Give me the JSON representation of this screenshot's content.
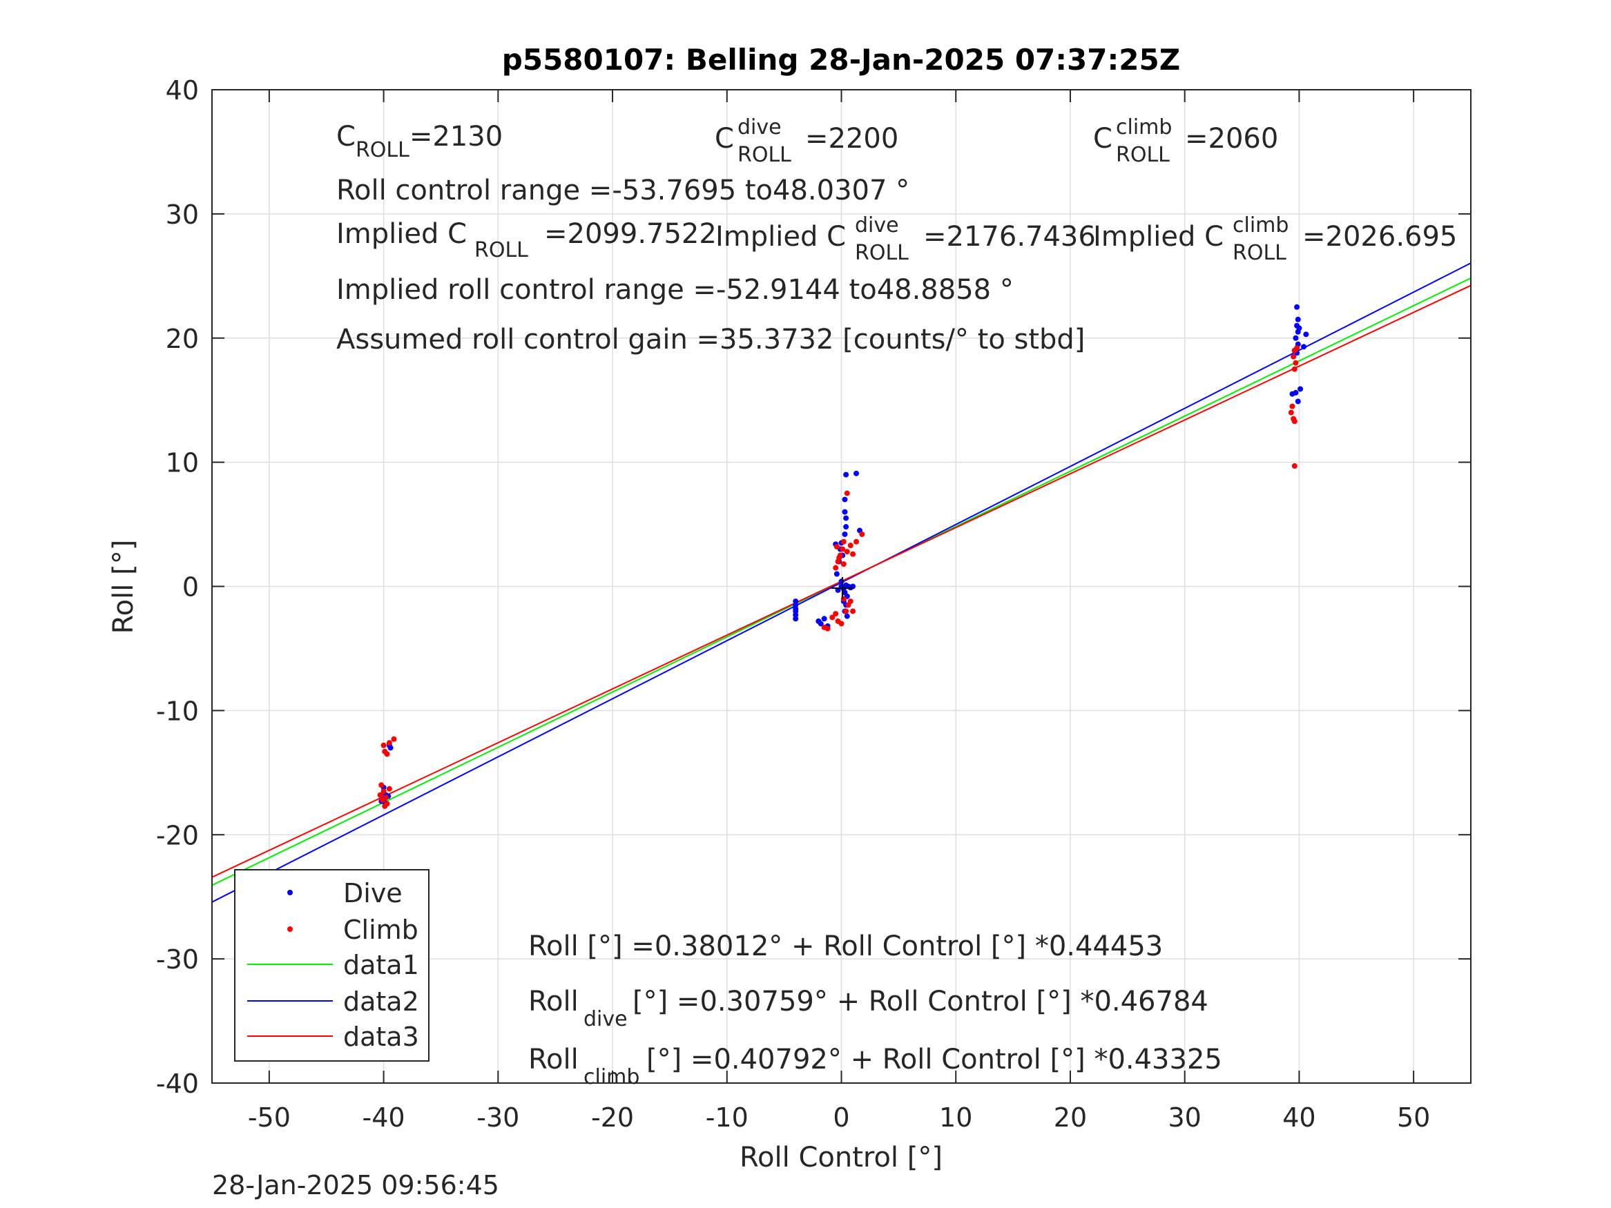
{
  "chart_data": {
    "type": "scatter",
    "title": "p5580107: Belling 28-Jan-2025 07:37:25Z",
    "xlabel": "Roll Control [°]",
    "ylabel": "Roll [°]",
    "xlim": [
      -55,
      55
    ],
    "ylim": [
      -40,
      40
    ],
    "xticks": [
      -50,
      -40,
      -30,
      -20,
      -10,
      0,
      10,
      20,
      30,
      40,
      50
    ],
    "yticks": [
      -40,
      -30,
      -20,
      -10,
      0,
      10,
      20,
      30,
      40
    ],
    "grid": true,
    "legend_position": "bottom-left",
    "timestamp": "28-Jan-2025 09:56:45",
    "colors": {
      "dive": "#0000ff",
      "climb": "#ff0000",
      "data1": "#00ee00",
      "data2": "#0000ff",
      "data3": "#ff0000",
      "axis": "#262626",
      "grid": "#dedede"
    },
    "series": [
      {
        "name": "Dive",
        "kind": "points",
        "color": "#0000ff",
        "points": [
          [
            -40,
            -16.2
          ],
          [
            -40,
            -16.6
          ],
          [
            -39.8,
            -16.8
          ],
          [
            -39.6,
            -16.9
          ],
          [
            -40,
            -17.1
          ],
          [
            -40.2,
            -17.3
          ],
          [
            -39.9,
            -17.4
          ],
          [
            -39.5,
            -12.8
          ],
          [
            -39.4,
            -13.0
          ],
          [
            -4,
            -1.2
          ],
          [
            -4,
            -1.5
          ],
          [
            -4,
            -1.8
          ],
          [
            -4,
            -2.0
          ],
          [
            -4,
            -2.3
          ],
          [
            -4,
            -2.6
          ],
          [
            -2.0,
            -2.8
          ],
          [
            -1.5,
            -2.6
          ],
          [
            -1.8,
            -3.0
          ],
          [
            -1.2,
            -3.2
          ],
          [
            0,
            0
          ],
          [
            0.2,
            -0.2
          ],
          [
            0.4,
            0.1
          ],
          [
            0.6,
            0.0
          ],
          [
            0.8,
            -0.1
          ],
          [
            1.0,
            0.0
          ],
          [
            0.3,
            -0.5
          ],
          [
            0.5,
            -0.8
          ],
          [
            0.2,
            -1.2
          ],
          [
            0.4,
            -1.5
          ],
          [
            0.3,
            -2.0
          ],
          [
            0.5,
            -2.4
          ],
          [
            -0.4,
            1.0
          ],
          [
            -0.2,
            2.0
          ],
          [
            -0.1,
            3.0
          ],
          [
            0,
            3.5
          ],
          [
            0.3,
            4.2
          ],
          [
            0.4,
            4.8
          ],
          [
            0.4,
            5.5
          ],
          [
            0.3,
            6.0
          ],
          [
            0.3,
            7.0
          ],
          [
            0.4,
            9.0
          ],
          [
            1.3,
            9.1
          ],
          [
            1.6,
            4.5
          ],
          [
            -0.5,
            3.4
          ],
          [
            0.1,
            2.5
          ],
          [
            0,
            0.4
          ],
          [
            -0.3,
            -0.3
          ],
          [
            39.8,
            22.5
          ],
          [
            39.9,
            21.5
          ],
          [
            39.8,
            21.0
          ],
          [
            39.9,
            20.5
          ],
          [
            39.7,
            20.0
          ],
          [
            39.9,
            19.5
          ],
          [
            39.6,
            19.0
          ],
          [
            40.6,
            20.3
          ],
          [
            40.4,
            19.3
          ],
          [
            39.4,
            15.5
          ],
          [
            39.7,
            15.6
          ],
          [
            40.1,
            15.9
          ],
          [
            39.9,
            14.9
          ],
          [
            40.0,
            20.8
          ],
          [
            39.8,
            18.8
          ]
        ]
      },
      {
        "name": "Climb",
        "kind": "points",
        "color": "#ff0000",
        "points": [
          [
            -40,
            -16.5
          ],
          [
            -40.3,
            -16.8
          ],
          [
            -39.8,
            -17.0
          ],
          [
            -40.1,
            -17.2
          ],
          [
            -39.7,
            -17.5
          ],
          [
            -40.2,
            -16.0
          ],
          [
            -39.5,
            -16.3
          ],
          [
            -39.9,
            -17.7
          ],
          [
            -40,
            -12.8
          ],
          [
            -39.7,
            -13.5
          ],
          [
            -39.5,
            -12.6
          ],
          [
            -39.1,
            -12.3
          ],
          [
            -39.9,
            -13.3
          ],
          [
            -1.5,
            -3.3
          ],
          [
            -1.2,
            -3.4
          ],
          [
            -0.8,
            -2.5
          ],
          [
            -0.5,
            -2.2
          ],
          [
            -0.3,
            -2.8
          ],
          [
            0,
            -3.0
          ],
          [
            0.4,
            -2.0
          ],
          [
            0.6,
            -1.5
          ],
          [
            0.2,
            -1.0
          ],
          [
            0.8,
            -1.2
          ],
          [
            1.0,
            -2.0
          ],
          [
            -0.5,
            1.5
          ],
          [
            -0.3,
            2.0
          ],
          [
            -0.1,
            2.5
          ],
          [
            0.1,
            3.0
          ],
          [
            -0.4,
            3.2
          ],
          [
            0.2,
            3.6
          ],
          [
            0.5,
            2.8
          ],
          [
            0.8,
            3.3
          ],
          [
            1.0,
            2.6
          ],
          [
            1.3,
            3.6
          ],
          [
            1.8,
            4.2
          ],
          [
            0.5,
            7.5
          ],
          [
            0.2,
            1.8
          ],
          [
            -0.2,
            2.3
          ],
          [
            39.5,
            18.5
          ],
          [
            39.7,
            18.0
          ],
          [
            39.6,
            17.5
          ],
          [
            39.8,
            19.2
          ],
          [
            39.6,
            19.0
          ],
          [
            39.4,
            14.5
          ],
          [
            39.3,
            14.0
          ],
          [
            39.5,
            13.5
          ],
          [
            39.6,
            13.3
          ],
          [
            39.6,
            9.7
          ]
        ]
      },
      {
        "name": "data1",
        "kind": "line",
        "color": "#00ee00",
        "intercept": 0.38012,
        "slope": 0.44453
      },
      {
        "name": "data2",
        "kind": "line",
        "color": "#0000ff",
        "intercept": 0.30759,
        "slope": 0.46784
      },
      {
        "name": "data3",
        "kind": "line",
        "color": "#ff0000",
        "intercept": 0.40792,
        "slope": 0.43325
      }
    ],
    "annotations": {
      "c_roll": {
        "base": "C",
        "sub": "ROLL",
        "value": "=2130"
      },
      "c_roll_dive": {
        "base": "C",
        "sup": "dive",
        "sub": "ROLL",
        "value": "=2200"
      },
      "c_roll_climb": {
        "base": "C",
        "sup": "climb",
        "sub": "ROLL",
        "value": "=2060"
      },
      "roll_control_range": "Roll control range =-53.7695 to48.0307 °",
      "implied_c_roll": {
        "prefix": "Implied C",
        "sub": "ROLL",
        "value": "=2099.7522"
      },
      "implied_c_roll_dive": {
        "prefix": "Implied C",
        "sup": "dive",
        "sub": "ROLL",
        "value": "=2176.7436"
      },
      "implied_c_roll_climb": {
        "prefix": "Implied C",
        "sup": "climb",
        "sub": "ROLL",
        "value": "=2026.695"
      },
      "implied_roll_control_range": "Implied roll control range =-52.9144 to48.8858 °",
      "assumed_gain": "Assumed roll control gain =35.3732 [counts/° to stbd]",
      "fit_all": "Roll [°] =0.38012° + Roll Control [°] *0.44453",
      "fit_dive": {
        "base": "Roll",
        "sub": "dive",
        "rest": " [°] =0.30759° + Roll Control [°] *0.46784"
      },
      "fit_climb": {
        "base": "Roll",
        "sub": "climb",
        "rest": " [°] =0.40792° + Roll Control [°] *0.43325"
      }
    }
  }
}
